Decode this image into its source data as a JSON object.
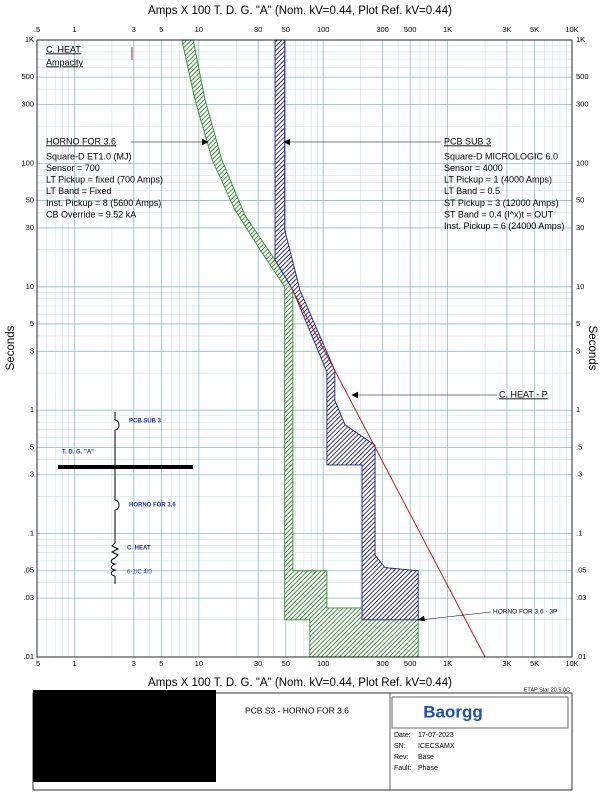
{
  "chart_data": {
    "type": "tcc",
    "xlabel": "Amps  X  100   T. D. G. \"A\" (Nom. kV=0.44, Plot Ref. kV=0.44)",
    "ylabel": "Seconds",
    "xscale": "log",
    "yscale": "log",
    "grid": true,
    "xlim": [
      0.5,
      10000
    ],
    "ylim": [
      0.01,
      1000
    ],
    "xticks": [
      {
        "value": 0.5,
        "label": ".5"
      },
      1,
      3,
      5,
      10,
      30,
      50,
      100,
      300,
      500,
      {
        "value": 1000,
        "label": "1K"
      },
      {
        "value": 3000,
        "label": "3K"
      },
      {
        "value": 5000,
        "label": "5K"
      },
      {
        "value": 10000,
        "label": "10K"
      }
    ],
    "yticks": [
      {
        "value": 0.01,
        "label": ".01"
      },
      {
        "value": 0.03,
        "label": ".03"
      },
      {
        "value": 0.05,
        "label": ".05"
      },
      {
        "value": 0.1,
        "label": ".1"
      },
      {
        "value": 0.3,
        "label": ".3"
      },
      {
        "value": 0.5,
        "label": ".5"
      },
      1,
      3,
      5,
      10,
      30,
      50,
      100,
      300,
      500,
      {
        "value": 1000,
        "label": "1K"
      }
    ],
    "xminor": [
      0.6,
      0.7,
      0.8,
      0.9,
      2,
      4,
      6,
      7,
      8,
      9,
      20,
      40,
      60,
      70,
      80,
      90,
      200,
      400,
      600,
      700,
      800,
      900,
      2000,
      4000,
      6000,
      7000,
      8000,
      9000
    ],
    "yminor": [
      0.02,
      0.04,
      0.06,
      0.07,
      0.08,
      0.09,
      0.2,
      0.4,
      0.6,
      0.7,
      0.8,
      0.9,
      2,
      4,
      6,
      7,
      8,
      9,
      20,
      40,
      60,
      70,
      80,
      90,
      200,
      400,
      600,
      700,
      800,
      900
    ],
    "series": [
      {
        "name": "HORNO FOR 3.6",
        "color": "#2e8b2e",
        "fill": "hatch",
        "details": [
          "Square-D  ET1.0 (MJ)",
          "Sensor = 700",
          "LT Pickup = fixed (700 Amps)",
          "LT Band = Fixed",
          "Inst. Pickup = 8 (5600 Amps)",
          "CB Override = 9.52 kA"
        ],
        "x": [
          7.3,
          9.3,
          12.8,
          19.5,
          31,
          49,
          49,
          78,
          78,
          580,
          580,
          107,
          107,
          57,
          57,
          38.7,
          23.5,
          15.3,
          11.2,
          9
        ],
        "values": [
          1000,
          330,
          107,
          42,
          20,
          10,
          0.02,
          0.02,
          0.01,
          0.01,
          0.025,
          0.025,
          0.05,
          0.05,
          10,
          18,
          38,
          107,
          330,
          1000
        ]
      },
      {
        "name": "PCB SUB 3",
        "color": "#1f1f7a",
        "fill": "hatch",
        "details": [
          "Square-D  MICROLOGIC 6.0",
          "Sensor = 4000",
          "LT Pickup = 1 (4000 Amps)",
          "LT Band = 0.5",
          "ST Pickup = 3 (12000 Amps)",
          "ST Band = 0.4  (I^x)t = OUT",
          "Inst. Pickup = 6 (24000 Amps)"
        ],
        "x": [
          41,
          41,
          57,
          107,
          107,
          205,
          205,
          580,
          580,
          313,
          261,
          261,
          150,
          124,
          124,
          65,
          49,
          49
        ],
        "values": [
          1000,
          16.5,
          9.4,
          2.04,
          0.36,
          0.36,
          0.02,
          0.02,
          0.05,
          0.053,
          0.067,
          0.52,
          0.76,
          1.2,
          2.1,
          9.4,
          29,
          1000
        ]
      },
      {
        "name": "C. HEAT - P",
        "color": "#b22222",
        "fill": "none",
        "x": [
          55,
          2000
        ],
        "values": [
          10,
          0.01
        ]
      },
      {
        "label_lines": [
          "C. HEAT",
          "Ampacity"
        ],
        "color": "#b22222",
        "fill": "none",
        "x": [
          2.9,
          2.9
        ],
        "values": [
          880,
          690
        ]
      }
    ],
    "annotations": [
      "HORNO FOR 3.6 - 3P"
    ]
  },
  "oneline": {
    "labels": [
      "PCB SUB 3",
      "T. D. G. \"A\"",
      "HORNO FOR 3.6",
      "C. HEAT",
      "6-1/C 4/0"
    ]
  },
  "footer": {
    "software": "ETAP Star 20.5.0C",
    "project": "PCB S3 - HORNO FOR 3.6",
    "logo": "Baorgg",
    "info": [
      [
        "Date:",
        "17-07-2023"
      ],
      [
        "SN:",
        "ICECSAMX"
      ],
      [
        "Rev:",
        "Base"
      ],
      [
        "Fault:",
        "Phase"
      ]
    ]
  }
}
